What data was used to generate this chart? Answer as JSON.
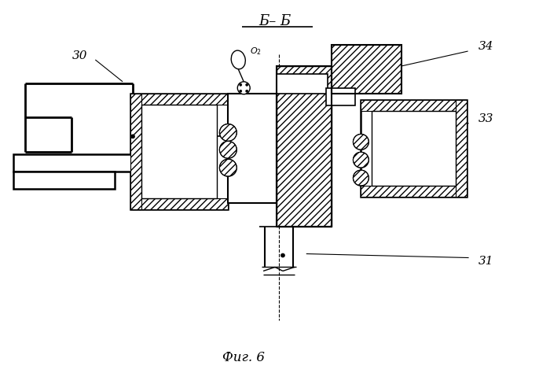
{
  "title": "Б– Б",
  "fig_label": "Фиг. 6",
  "bg_color": "#ffffff",
  "line_color": "#000000"
}
